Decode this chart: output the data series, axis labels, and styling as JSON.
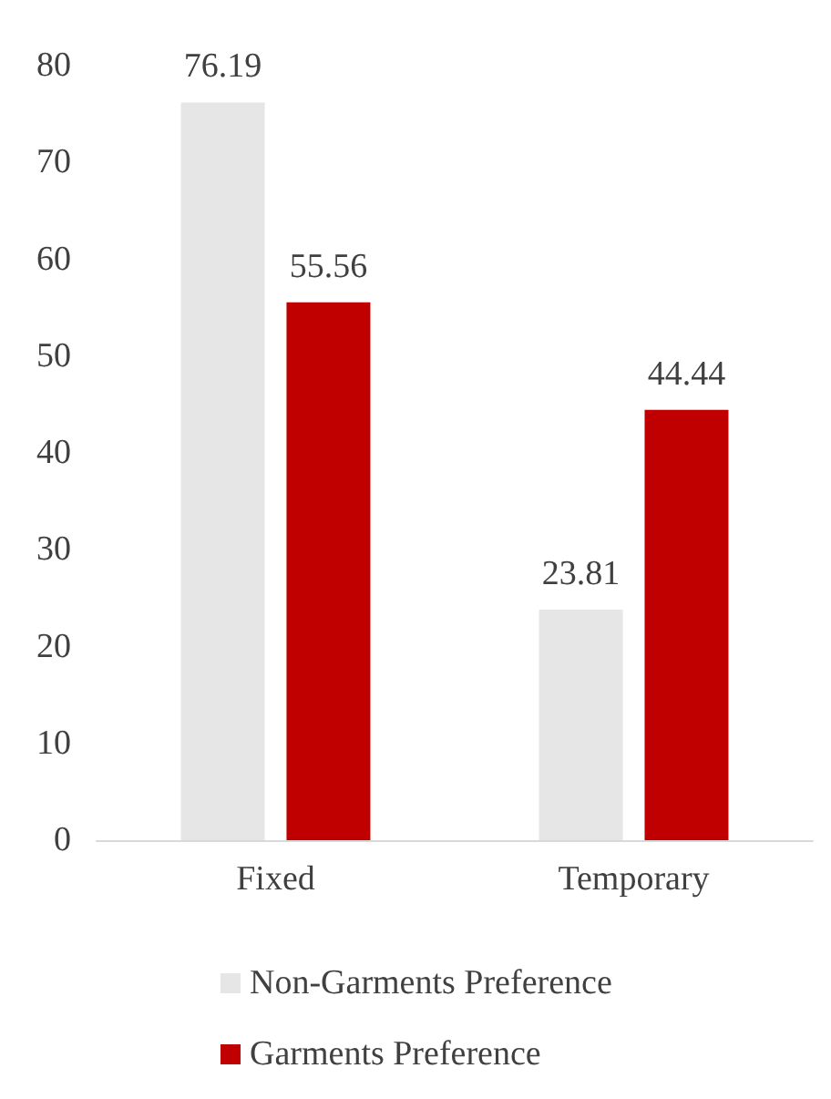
{
  "chart_data": {
    "type": "bar",
    "categories": [
      "Fixed",
      "Temporary"
    ],
    "series": [
      {
        "name": "Non-Garments Preference",
        "color": "#e7e6e6",
        "values": [
          76.19,
          23.81
        ]
      },
      {
        "name": "Garments Preference",
        "color": "#c00000",
        "values": [
          55.56,
          44.44
        ]
      }
    ],
    "ylim": [
      0,
      80
    ],
    "yticks": [
      0,
      10,
      20,
      30,
      40,
      50,
      60,
      70,
      80
    ],
    "grid": false,
    "legend": "bottom",
    "data_labels": true
  }
}
